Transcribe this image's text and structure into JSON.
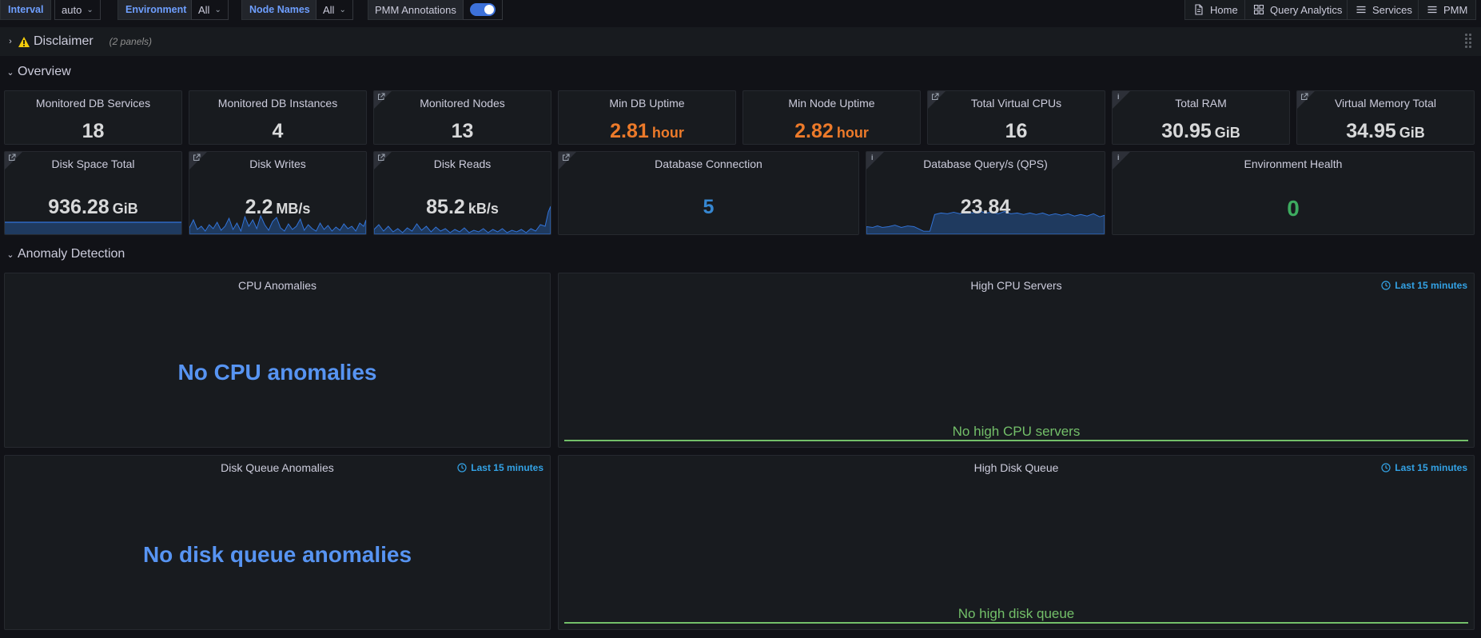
{
  "variables": {
    "interval": {
      "label": "Interval",
      "value": "auto"
    },
    "environment": {
      "label": "Environment",
      "value": "All"
    },
    "node_names": {
      "label": "Node Names",
      "value": "All"
    },
    "annotations": {
      "label": "PMM Annotations",
      "enabled": true
    }
  },
  "nav": {
    "home": "Home",
    "query_analytics": "Query Analytics",
    "services": "Services",
    "pmm": "PMM"
  },
  "rows": {
    "disclaimer": {
      "title": "Disclaimer",
      "count": "(2 panels)"
    },
    "overview": {
      "title": "Overview"
    },
    "anomaly": {
      "title": "Anomaly Detection"
    }
  },
  "stats": {
    "db_services": {
      "title": "Monitored DB Services",
      "value": "18"
    },
    "db_instances": {
      "title": "Monitored DB Instances",
      "value": "4"
    },
    "nodes": {
      "title": "Monitored Nodes",
      "value": "13"
    },
    "min_db_uptime": {
      "title": "Min DB Uptime",
      "value": "2.81",
      "unit": "hour"
    },
    "min_node_uptime": {
      "title": "Min Node Uptime",
      "value": "2.82",
      "unit": "hour"
    },
    "vcpus": {
      "title": "Total Virtual CPUs",
      "value": "16"
    },
    "ram": {
      "title": "Total RAM",
      "value": "30.95",
      "unit": "GiB"
    },
    "vmem": {
      "title": "Virtual Memory Total",
      "value": "34.95",
      "unit": "GiB"
    },
    "disk_space": {
      "title": "Disk Space Total",
      "value": "936.28",
      "unit": "GiB"
    },
    "disk_writes": {
      "title": "Disk Writes",
      "value": "2.2",
      "unit": "MB/s"
    },
    "disk_reads": {
      "title": "Disk Reads",
      "value": "85.2",
      "unit": "kB/s"
    },
    "db_conn": {
      "title": "Database Connection",
      "value": "5"
    },
    "qps": {
      "title": "Database Query/s (QPS)",
      "value": "23.84"
    },
    "env_health": {
      "title": "Environment Health",
      "value": "0"
    }
  },
  "anomaly": {
    "cpu": {
      "title": "CPU Anomalies",
      "message": "No CPU anomalies"
    },
    "high_cpu": {
      "title": "High CPU Servers",
      "range": "Last 15 minutes",
      "nodata": "No high CPU servers"
    },
    "disk_queue": {
      "title": "Disk Queue Anomalies",
      "range": "Last 15 minutes",
      "message": "No disk queue anomalies"
    },
    "high_disk": {
      "title": "High Disk Queue",
      "range": "Last 15 minutes",
      "nodata": "No high disk queue"
    }
  },
  "colors": {
    "background": "#111217",
    "panel": "#181b1f",
    "accent_blue": "#5794f2",
    "uptime_orange": "#ec7a2a",
    "health_green": "#3dab5f",
    "nodata_green": "#73bf69"
  }
}
